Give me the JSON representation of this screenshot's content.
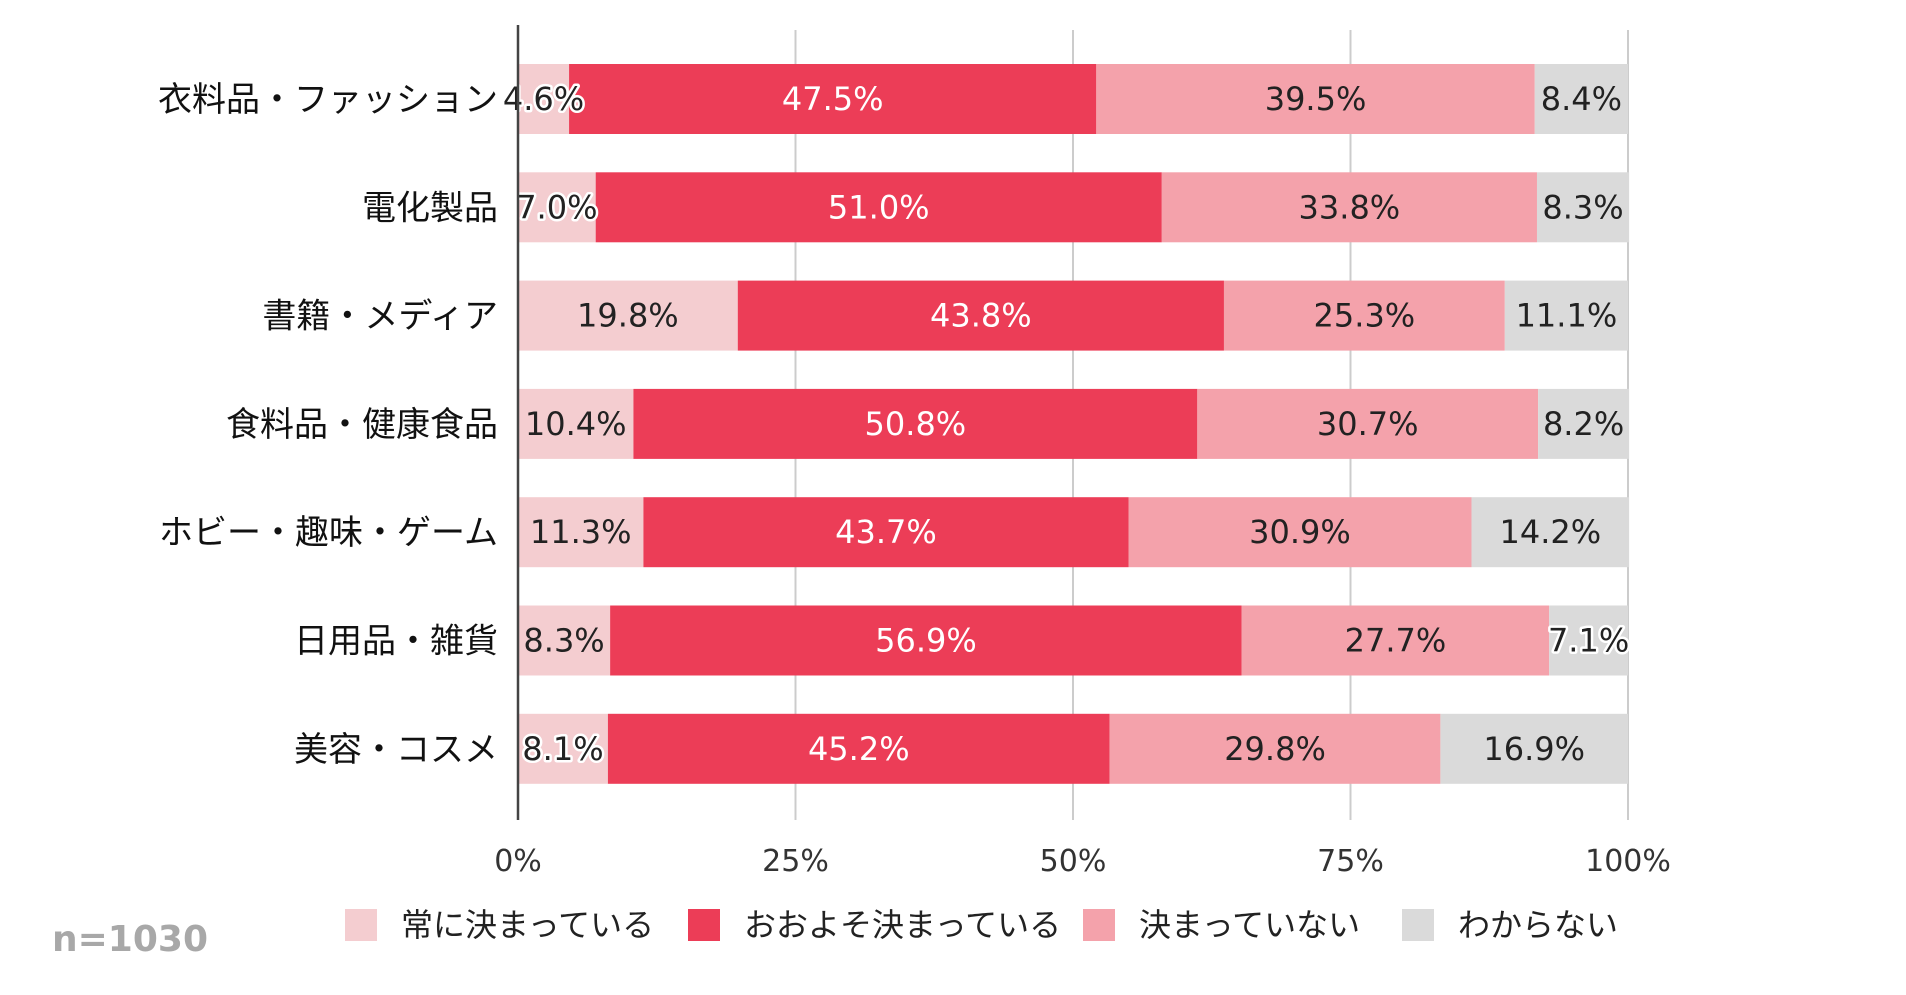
{
  "chart_data": {
    "type": "bar",
    "orientation": "horizontal",
    "stacked": true,
    "categories": [
      "衣料品・ファッション",
      "電化製品",
      "書籍・メディア",
      "食料品・健康食品",
      "ホビー・趣味・ゲーム",
      "日用品・雑貨",
      "美容・コスメ"
    ],
    "series": [
      {
        "name": "常に決まっている",
        "color": "#f4cdd0",
        "label_color": "#222222",
        "values": [
          4.6,
          7.0,
          19.8,
          10.4,
          11.3,
          8.3,
          8.1
        ]
      },
      {
        "name": "おおよそ決まっている",
        "color": "#ec3d57",
        "label_color": "#ffffff",
        "values": [
          47.5,
          51.0,
          43.8,
          50.8,
          43.7,
          56.9,
          45.2
        ]
      },
      {
        "name": "決まっていない",
        "color": "#f4a2ab",
        "label_color": "#222222",
        "values": [
          39.5,
          33.8,
          25.3,
          30.7,
          30.9,
          27.7,
          29.8
        ]
      },
      {
        "name": "わからない",
        "color": "#dadada",
        "label_color": "#222222",
        "values": [
          8.4,
          8.3,
          11.1,
          8.2,
          14.2,
          7.1,
          16.9
        ]
      }
    ],
    "data_labels": [
      [
        "4.6%",
        "47.5%",
        "39.5%",
        "8.4%"
      ],
      [
        "7.0%",
        "51.0%",
        "33.8%",
        "8.3%"
      ],
      [
        "19.8%",
        "43.8%",
        "25.3%",
        "11.1%"
      ],
      [
        "10.4%",
        "50.8%",
        "30.7%",
        "8.2%"
      ],
      [
        "11.3%",
        "43.7%",
        "30.9%",
        "14.2%"
      ],
      [
        "8.3%",
        "56.9%",
        "27.7%",
        "7.1%"
      ],
      [
        "8.1%",
        "45.2%",
        "29.8%",
        "16.9%"
      ]
    ],
    "xticks": [
      0,
      25,
      50,
      75,
      100
    ],
    "xtick_labels": [
      "0%",
      "25%",
      "50%",
      "75%",
      "100%"
    ],
    "xlim": [
      0,
      100
    ],
    "grid": true,
    "legend_position": "bottom",
    "note": "n=1030"
  }
}
